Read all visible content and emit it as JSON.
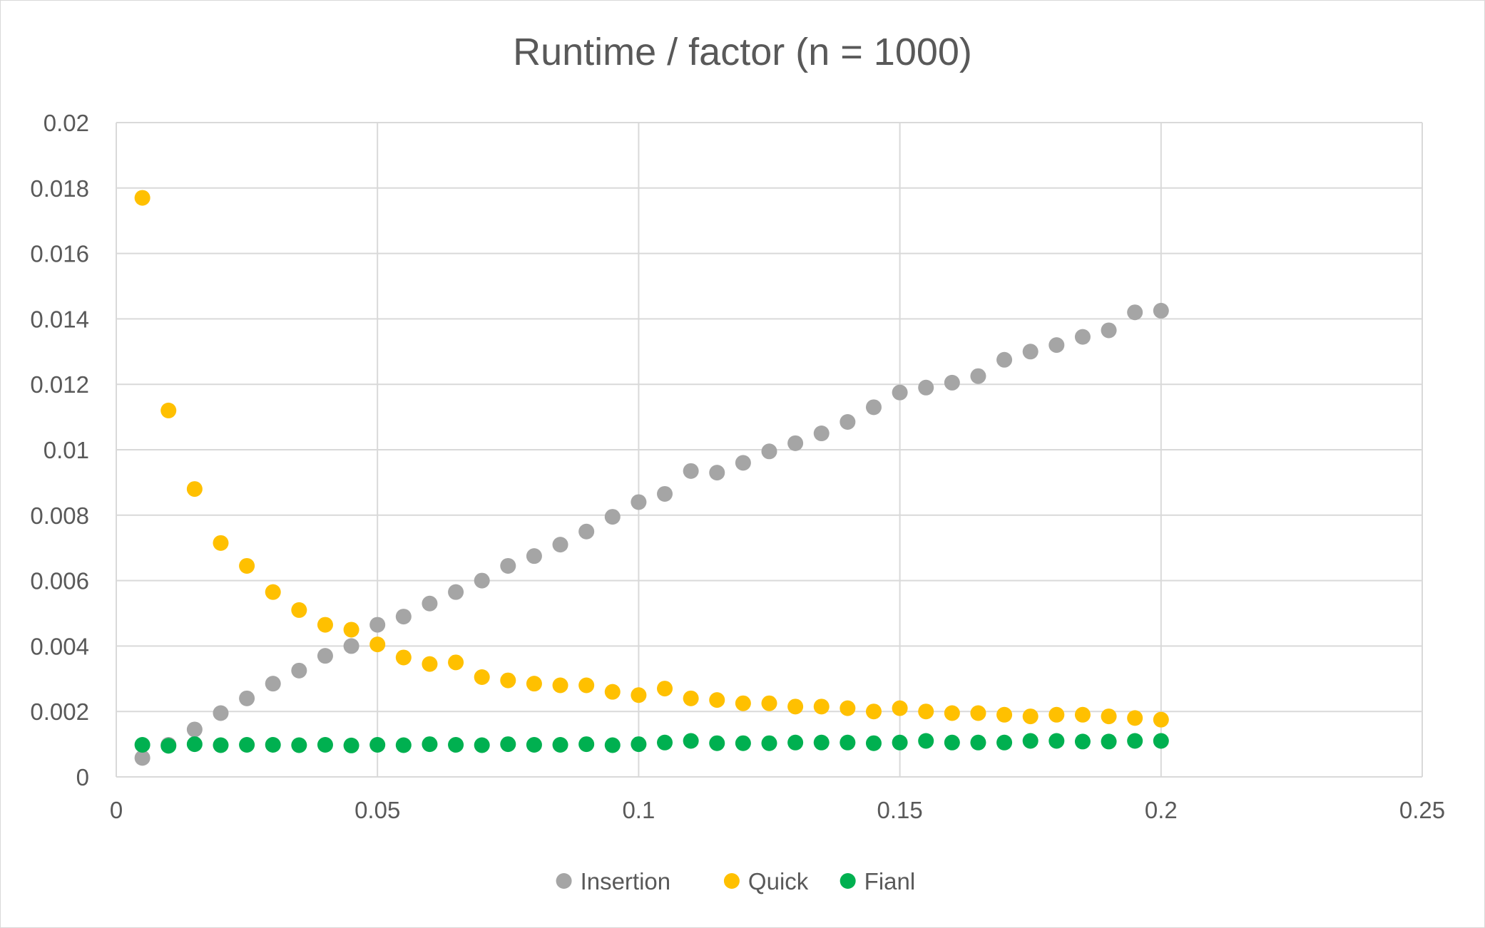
{
  "chart_data": {
    "type": "scatter",
    "title": "Runtime  / factor (n = 1000)",
    "xlabel": "",
    "ylabel": "",
    "xlim": [
      0,
      0.25
    ],
    "ylim": [
      0,
      0.02
    ],
    "x_ticks": [
      "0",
      "0.05",
      "0.1",
      "0.15",
      "0.2",
      "0.25"
    ],
    "y_ticks": [
      "0",
      "0.002",
      "0.004",
      "0.006",
      "0.008",
      "0.01",
      "0.012",
      "0.014",
      "0.016",
      "0.018",
      "0.02"
    ],
    "grid": true,
    "legend_position": "bottom",
    "x": [
      0.005,
      0.01,
      0.015,
      0.02,
      0.025,
      0.03,
      0.035,
      0.04,
      0.045,
      0.05,
      0.055,
      0.06,
      0.065,
      0.07,
      0.075,
      0.08,
      0.085,
      0.09,
      0.095,
      0.1,
      0.105,
      0.11,
      0.115,
      0.12,
      0.125,
      0.13,
      0.135,
      0.14,
      0.145,
      0.15,
      0.155,
      0.16,
      0.165,
      0.17,
      0.175,
      0.18,
      0.185,
      0.19,
      0.195,
      0.2
    ],
    "series": [
      {
        "name": "Insertion",
        "color": "#a5a5a5",
        "values": [
          0.00058,
          0.00098,
          0.00145,
          0.00195,
          0.0024,
          0.00285,
          0.00325,
          0.0037,
          0.004,
          0.00465,
          0.0049,
          0.0053,
          0.00565,
          0.006,
          0.00645,
          0.00675,
          0.0071,
          0.0075,
          0.00795,
          0.0084,
          0.00865,
          0.00935,
          0.0093,
          0.0096,
          0.00995,
          0.0102,
          0.0105,
          0.01085,
          0.0113,
          0.01175,
          0.0119,
          0.01205,
          0.01225,
          0.01275,
          0.013,
          0.0132,
          0.01345,
          0.01365,
          0.0142,
          0.01425
        ]
      },
      {
        "name": "Quick",
        "color": "#ffc000",
        "values": [
          0.0177,
          0.0112,
          0.0088,
          0.00715,
          0.00645,
          0.00565,
          0.0051,
          0.00465,
          0.0045,
          0.00405,
          0.00365,
          0.00345,
          0.0035,
          0.00305,
          0.00295,
          0.00285,
          0.0028,
          0.0028,
          0.0026,
          0.0025,
          0.0027,
          0.0024,
          0.00235,
          0.00225,
          0.00225,
          0.00215,
          0.00215,
          0.0021,
          0.002,
          0.0021,
          0.002,
          0.00195,
          0.00195,
          0.0019,
          0.00185,
          0.0019,
          0.0019,
          0.00185,
          0.0018,
          0.00175
        ]
      },
      {
        "name": "Fianl",
        "color": "#00b050",
        "values": [
          0.00098,
          0.00095,
          0.001,
          0.00097,
          0.00098,
          0.00098,
          0.00097,
          0.00098,
          0.00096,
          0.00098,
          0.00097,
          0.001,
          0.00098,
          0.00097,
          0.001,
          0.00098,
          0.00098,
          0.001,
          0.00097,
          0.001,
          0.00105,
          0.0011,
          0.00103,
          0.00103,
          0.00103,
          0.00105,
          0.00105,
          0.00105,
          0.00103,
          0.00105,
          0.0011,
          0.00105,
          0.00105,
          0.00105,
          0.0011,
          0.0011,
          0.00108,
          0.00108,
          0.0011,
          0.0011
        ]
      }
    ]
  }
}
